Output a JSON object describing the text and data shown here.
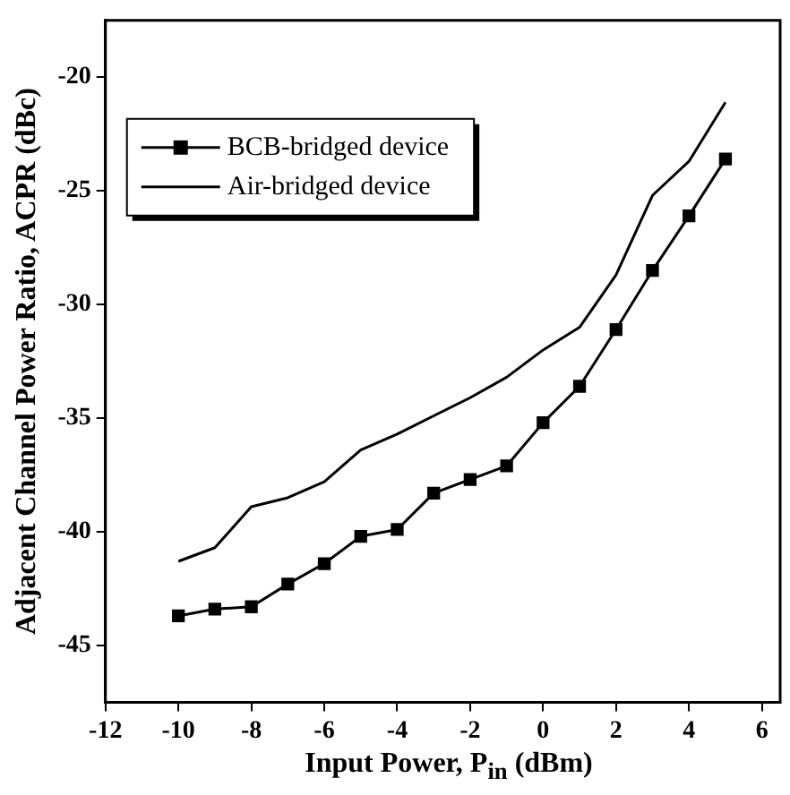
{
  "chart_data": {
    "type": "line",
    "xlabel": "Input Power, P$_{in}$ (dBm)",
    "ylabel": "Adjacent Channel Power Ratio, ACPR (dBc)",
    "x": [
      -10,
      -9,
      -8,
      -7,
      -6,
      -5,
      -4,
      -3,
      -2,
      -1,
      0,
      1,
      2,
      3,
      4,
      5
    ],
    "series": [
      {
        "name": "BCB-bridged device",
        "color": "#000000",
        "marker": "square",
        "values": [
          -43.7,
          -43.4,
          -43.3,
          -42.3,
          -41.4,
          -40.2,
          -39.9,
          -38.3,
          -37.7,
          -37.1,
          -35.2,
          -33.6,
          -31.1,
          -28.5,
          -26.1,
          -23.6
        ]
      },
      {
        "name": "Air-bridged device",
        "color": "#000000",
        "marker": "none",
        "values": [
          -41.3,
          -40.7,
          -38.9,
          -38.5,
          -37.8,
          -36.4,
          -35.7,
          -34.9,
          -34.1,
          -33.2,
          -32.0,
          -31.0,
          -28.7,
          -25.2,
          -23.7,
          -21.1
        ]
      }
    ],
    "xlim": [
      -12,
      6.5
    ],
    "xticks": [
      -12,
      -10,
      -8,
      -6,
      -4,
      -2,
      0,
      2,
      4,
      6
    ],
    "ylim": [
      -47.5,
      -17.5
    ],
    "yticks": [
      -45,
      -40,
      -35,
      -30,
      -25,
      -20
    ],
    "legend": "top left",
    "grid": false
  }
}
